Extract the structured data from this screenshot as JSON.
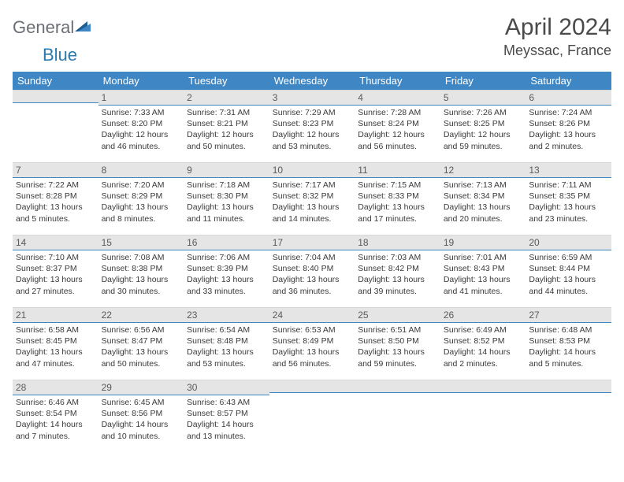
{
  "brand": {
    "part1": "General",
    "part2": "Blue"
  },
  "title": "April 2024",
  "location": "Meyssac, France",
  "colors": {
    "header_bg": "#3f86c5",
    "header_text": "#ffffff",
    "band_bg": "#e5e5e5",
    "band_border": "#3f86c5",
    "logo_gray": "#6b6f75",
    "logo_blue": "#2b7ab0"
  },
  "weekdays": [
    "Sunday",
    "Monday",
    "Tuesday",
    "Wednesday",
    "Thursday",
    "Friday",
    "Saturday"
  ],
  "weeks": [
    [
      null,
      {
        "n": "1",
        "sr": "7:33 AM",
        "ss": "8:20 PM",
        "dl": "12 hours and 46 minutes."
      },
      {
        "n": "2",
        "sr": "7:31 AM",
        "ss": "8:21 PM",
        "dl": "12 hours and 50 minutes."
      },
      {
        "n": "3",
        "sr": "7:29 AM",
        "ss": "8:23 PM",
        "dl": "12 hours and 53 minutes."
      },
      {
        "n": "4",
        "sr": "7:28 AM",
        "ss": "8:24 PM",
        "dl": "12 hours and 56 minutes."
      },
      {
        "n": "5",
        "sr": "7:26 AM",
        "ss": "8:25 PM",
        "dl": "12 hours and 59 minutes."
      },
      {
        "n": "6",
        "sr": "7:24 AM",
        "ss": "8:26 PM",
        "dl": "13 hours and 2 minutes."
      }
    ],
    [
      {
        "n": "7",
        "sr": "7:22 AM",
        "ss": "8:28 PM",
        "dl": "13 hours and 5 minutes."
      },
      {
        "n": "8",
        "sr": "7:20 AM",
        "ss": "8:29 PM",
        "dl": "13 hours and 8 minutes."
      },
      {
        "n": "9",
        "sr": "7:18 AM",
        "ss": "8:30 PM",
        "dl": "13 hours and 11 minutes."
      },
      {
        "n": "10",
        "sr": "7:17 AM",
        "ss": "8:32 PM",
        "dl": "13 hours and 14 minutes."
      },
      {
        "n": "11",
        "sr": "7:15 AM",
        "ss": "8:33 PM",
        "dl": "13 hours and 17 minutes."
      },
      {
        "n": "12",
        "sr": "7:13 AM",
        "ss": "8:34 PM",
        "dl": "13 hours and 20 minutes."
      },
      {
        "n": "13",
        "sr": "7:11 AM",
        "ss": "8:35 PM",
        "dl": "13 hours and 23 minutes."
      }
    ],
    [
      {
        "n": "14",
        "sr": "7:10 AM",
        "ss": "8:37 PM",
        "dl": "13 hours and 27 minutes."
      },
      {
        "n": "15",
        "sr": "7:08 AM",
        "ss": "8:38 PM",
        "dl": "13 hours and 30 minutes."
      },
      {
        "n": "16",
        "sr": "7:06 AM",
        "ss": "8:39 PM",
        "dl": "13 hours and 33 minutes."
      },
      {
        "n": "17",
        "sr": "7:04 AM",
        "ss": "8:40 PM",
        "dl": "13 hours and 36 minutes."
      },
      {
        "n": "18",
        "sr": "7:03 AM",
        "ss": "8:42 PM",
        "dl": "13 hours and 39 minutes."
      },
      {
        "n": "19",
        "sr": "7:01 AM",
        "ss": "8:43 PM",
        "dl": "13 hours and 41 minutes."
      },
      {
        "n": "20",
        "sr": "6:59 AM",
        "ss": "8:44 PM",
        "dl": "13 hours and 44 minutes."
      }
    ],
    [
      {
        "n": "21",
        "sr": "6:58 AM",
        "ss": "8:45 PM",
        "dl": "13 hours and 47 minutes."
      },
      {
        "n": "22",
        "sr": "6:56 AM",
        "ss": "8:47 PM",
        "dl": "13 hours and 50 minutes."
      },
      {
        "n": "23",
        "sr": "6:54 AM",
        "ss": "8:48 PM",
        "dl": "13 hours and 53 minutes."
      },
      {
        "n": "24",
        "sr": "6:53 AM",
        "ss": "8:49 PM",
        "dl": "13 hours and 56 minutes."
      },
      {
        "n": "25",
        "sr": "6:51 AM",
        "ss": "8:50 PM",
        "dl": "13 hours and 59 minutes."
      },
      {
        "n": "26",
        "sr": "6:49 AM",
        "ss": "8:52 PM",
        "dl": "14 hours and 2 minutes."
      },
      {
        "n": "27",
        "sr": "6:48 AM",
        "ss": "8:53 PM",
        "dl": "14 hours and 5 minutes."
      }
    ],
    [
      {
        "n": "28",
        "sr": "6:46 AM",
        "ss": "8:54 PM",
        "dl": "14 hours and 7 minutes."
      },
      {
        "n": "29",
        "sr": "6:45 AM",
        "ss": "8:56 PM",
        "dl": "14 hours and 10 minutes."
      },
      {
        "n": "30",
        "sr": "6:43 AM",
        "ss": "8:57 PM",
        "dl": "14 hours and 13 minutes."
      },
      null,
      null,
      null,
      null
    ]
  ],
  "labels": {
    "sunrise": "Sunrise:",
    "sunset": "Sunset:",
    "daylight": "Daylight:"
  }
}
